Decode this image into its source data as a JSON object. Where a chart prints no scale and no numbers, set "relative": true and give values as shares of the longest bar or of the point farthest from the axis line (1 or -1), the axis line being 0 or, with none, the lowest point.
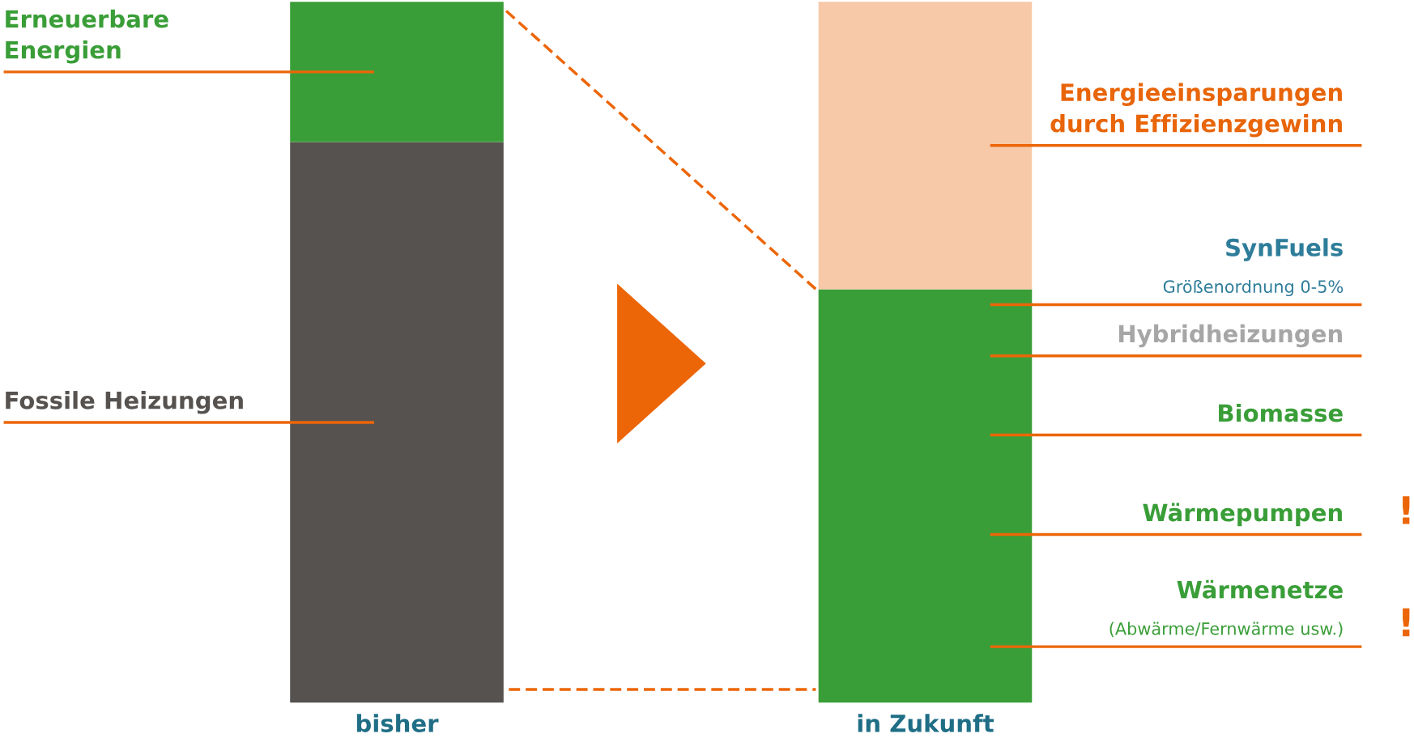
{
  "chart_data": {
    "type": "bar",
    "stacked": true,
    "relative": true,
    "categories": [
      "bisher",
      "in Zukunft"
    ],
    "series": [
      {
        "name": "Fossile Heizungen",
        "color": "#56524f",
        "values": [
          0.8,
          null
        ]
      },
      {
        "color": "#3a9e38",
        "values": [
          null,
          0.59
        ]
      },
      {
        "name": "Erneuerbare\nEnergien",
        "color": "#3a9e38",
        "values": [
          0.2,
          null
        ]
      },
      {
        "name": "Energieeinsparungen\ndurch Effizienzgewinn",
        "color": "#f7c9a8",
        "values": [
          null,
          0.41
        ]
      }
    ],
    "annotations": [
      "SynFuels",
      "Größenordnung 0-5%",
      "Hybridheizungen",
      "Biomasse",
      "Wärmepumpen",
      "Wärmenetze",
      "(Abwärme/Fernwärme usw.)",
      "!",
      "!"
    ]
  }
}
